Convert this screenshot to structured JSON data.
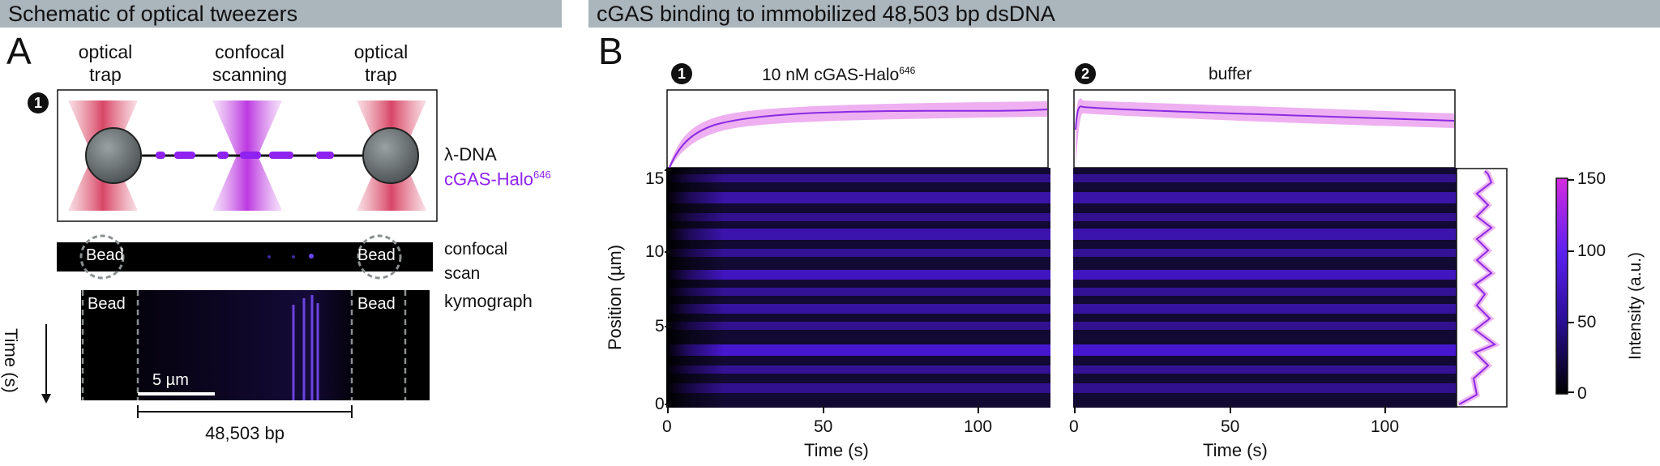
{
  "panelA": {
    "banner": "Schematic of optical tweezers",
    "letter": "A",
    "step": "1",
    "trap_left": [
      "optical",
      "trap"
    ],
    "confocal": [
      "confocal",
      "scanning"
    ],
    "trap_right": [
      "optical",
      "trap"
    ],
    "dna_label": "λ-DNA",
    "protein_label": "cGAS-Halo",
    "protein_sup": "646",
    "bead": "Bead",
    "scan_label": [
      "confocal",
      "scan"
    ],
    "kymo_label": "kymograph",
    "time_label": "Time (s)",
    "scalebar": "5 µm",
    "length": "48,503 bp",
    "colors": {
      "trap": "#e0677f",
      "confocal": "#c039e0",
      "protein": "#8f22f0",
      "bead": "#555c5e"
    }
  },
  "panelB": {
    "banner": "cGAS binding to immobilized 48,503 bp dsDNA",
    "letter": "B",
    "step1": "1",
    "step2": "2",
    "title1_main": "10 nM cGAS-Halo",
    "title1_sup": "646",
    "title2": "buffer",
    "ylabel": "Position (µm)",
    "yticks": [
      "0",
      "5",
      "10",
      "15"
    ],
    "xlabel": "Time (s)",
    "xticks": [
      "0",
      "50",
      "100"
    ],
    "colorbar_label": "Intensity (a.u.)",
    "colorbar_ticks": [
      "0",
      "50",
      "100",
      "150"
    ],
    "colors": {
      "line": "#8a2be2",
      "band": "#e585ea",
      "kymo": "#5a18e8"
    }
  },
  "chart_data": [
    {
      "type": "line",
      "title": "10 nM cGAS-Halo646",
      "xlabel": "Time (s)",
      "x": [
        0,
        5,
        10,
        20,
        30,
        50,
        75,
        100,
        123
      ],
      "y_relative": [
        0.0,
        0.55,
        0.75,
        0.87,
        0.9,
        0.91,
        0.92,
        0.91,
        0.9
      ]
    },
    {
      "type": "line",
      "title": "buffer",
      "xlabel": "Time (s)",
      "x": [
        0,
        25,
        50,
        75,
        100,
        123
      ],
      "y_relative": [
        0.92,
        0.87,
        0.84,
        0.82,
        0.8,
        0.78
      ]
    },
    {
      "type": "heatmap",
      "ylabel": "Position (µm)",
      "ylim": [
        0,
        15.5
      ],
      "colorbar_label": "Intensity (a.u.)",
      "colorbar_range": [
        0,
        150
      ],
      "profile_peaks_position": [
        3.4,
        4.6,
        5.9,
        7.2,
        8.2,
        9.4,
        10.7,
        12.0,
        13.3,
        14.6
      ],
      "profile_peaks_intensity": [
        110,
        95,
        90,
        110,
        80,
        95,
        90,
        90,
        95,
        110
      ]
    }
  ]
}
